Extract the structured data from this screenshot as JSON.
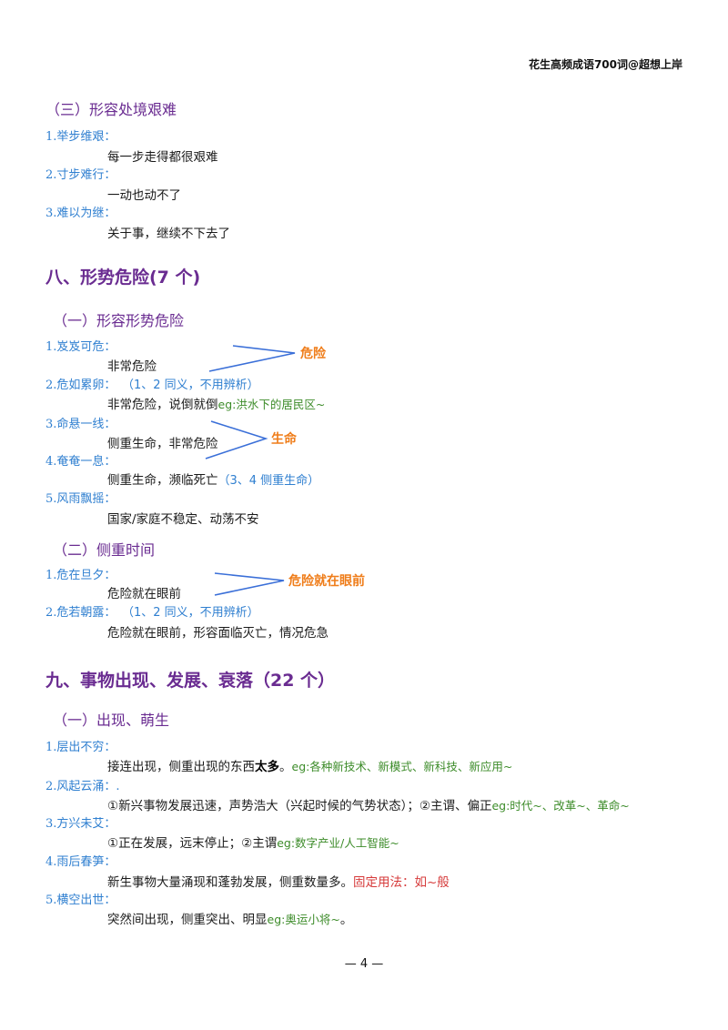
{
  "header": "花生高频成语700词@超想上岸",
  "sub3": "（三）形容处境艰难",
  "sub3_items": [
    {
      "term": "1.举步维艰：",
      "def": "每一步走得都很艰难"
    },
    {
      "term": "2.寸步难行：",
      "def": "一动也动不了"
    },
    {
      "term": "3.难以为继：",
      "def": "关于事，继续不下去了"
    }
  ],
  "sec8": "八、形势危险(7 个)",
  "sec8_sub1": "（一）形容形势危险",
  "sec8_sub1_items": [
    {
      "term": "1.岌岌可危：",
      "def": "非常危险"
    },
    {
      "term": "2.危如累卵：",
      "note": "（1、2 同义，不用辨析）",
      "def": "非常危险，说倒就倒",
      "eg": "eg:洪水下的居民区~"
    },
    {
      "term": "3.命悬一线：",
      "def": "侧重生命，非常危险"
    },
    {
      "term": "4.奄奄一息：",
      "def": "侧重生命，濒临死亡",
      "note": "（3、4 侧重生命）"
    },
    {
      "term": "5.风雨飘摇：",
      "def": "国家/家庭不稳定、动荡不安"
    }
  ],
  "label_danger": "危险",
  "label_life": "生命",
  "sec8_sub2": "（二）侧重时间",
  "sec8_sub2_items": [
    {
      "term": "1.危在旦夕：",
      "def": "危险就在眼前"
    },
    {
      "term": "2.危若朝露：",
      "note": "（1、2 同义，不用辨析）",
      "def": "危险就在眼前，形容面临灭亡，情况危急"
    }
  ],
  "label_imminent": "危险就在眼前",
  "sec9": "九、事物出现、发展、衰落（22 个）",
  "sec9_sub1": "（一）出现、萌生",
  "sec9_sub1_items": [
    {
      "term": "1.层出不穷：",
      "def_pre": "接连出现，侧重出现的东西",
      "def_bold": "太多",
      "def_post": "。",
      "eg": "eg:各种新技术、新模式、新科技、新应用~"
    },
    {
      "term": "2.风起云涌：.",
      "def": "①新兴事物发展迅速，声势浩大（兴起时候的气势状态）；②主谓、偏正",
      "eg": "eg:时代~、改革~、革命~"
    },
    {
      "term": "3.方兴未艾：",
      "def": "①正在发展，远末停止；②主谓",
      "eg": "eg:数字产业/人工智能~"
    },
    {
      "term": "4.雨后春笋：",
      "def": "新生事物大量涌现和蓬勃发展，侧重数量多。",
      "red": "固定用法：如~般"
    },
    {
      "term": "5.横空出世：",
      "def": "突然间出现，侧重突出、明显",
      "eg": "eg:奥运小将~",
      "post": "。"
    }
  ],
  "page_number": "— 4 —"
}
